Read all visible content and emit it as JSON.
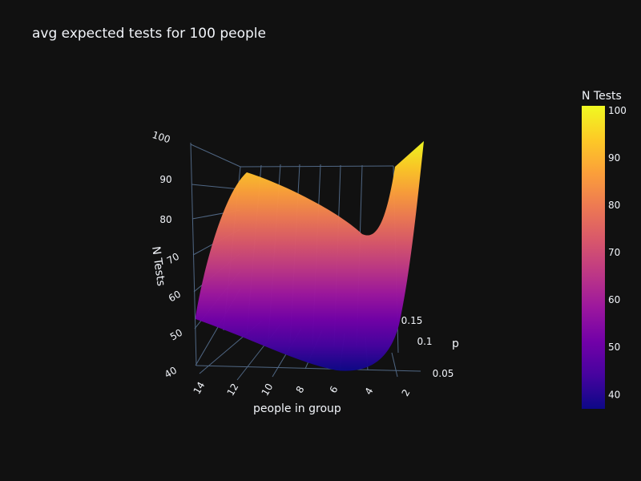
{
  "chart_data": {
    "type": "surface",
    "title": "avg expected tests for 100 people",
    "x_axis": {
      "label": "people in group",
      "ticks": [
        "2",
        "4",
        "6",
        "8",
        "10",
        "12",
        "14"
      ]
    },
    "y_axis": {
      "label": "p",
      "ticks": [
        "0.05",
        "0.1",
        "0.15"
      ]
    },
    "z_axis": {
      "label": "N Tests",
      "ticks": [
        "40",
        "50",
        "60",
        "70",
        "80",
        "90",
        "100"
      ],
      "range": [
        37,
        101
      ]
    },
    "colorbar": {
      "title": "N Tests",
      "ticks": [
        "40",
        "50",
        "60",
        "70",
        "80",
        "90",
        "100"
      ],
      "colorscale": [
        "#0d0887",
        "#46039f",
        "#7201a8",
        "#9c179e",
        "#bd3786",
        "#d8576b",
        "#ed7953",
        "#fb9f3a",
        "#fdca26",
        "#f0f921"
      ]
    },
    "series": [
      {
        "p": 0.05,
        "values": [
          {
            "x": 2,
            "z": 60
          },
          {
            "x": 4,
            "z": 43
          },
          {
            "x": 6,
            "z": 43
          },
          {
            "x": 8,
            "z": 46
          },
          {
            "x": 10,
            "z": 50
          },
          {
            "x": 12,
            "z": 53
          },
          {
            "x": 14,
            "z": 56
          }
        ]
      },
      {
        "p": 0.1,
        "values": [
          {
            "x": 2,
            "z": 69
          },
          {
            "x": 4,
            "z": 59
          },
          {
            "x": 6,
            "z": 63
          },
          {
            "x": 8,
            "z": 69
          },
          {
            "x": 10,
            "z": 75
          },
          {
            "x": 12,
            "z": 80
          },
          {
            "x": 14,
            "z": 84
          }
        ]
      },
      {
        "p": 0.15,
        "values": [
          {
            "x": 2,
            "z": 78
          },
          {
            "x": 4,
            "z": 73
          },
          {
            "x": 6,
            "z": 80
          },
          {
            "x": 8,
            "z": 88
          },
          {
            "x": 10,
            "z": 94
          },
          {
            "x": 12,
            "z": 98
          },
          {
            "x": 14,
            "z": 100
          }
        ]
      }
    ]
  }
}
